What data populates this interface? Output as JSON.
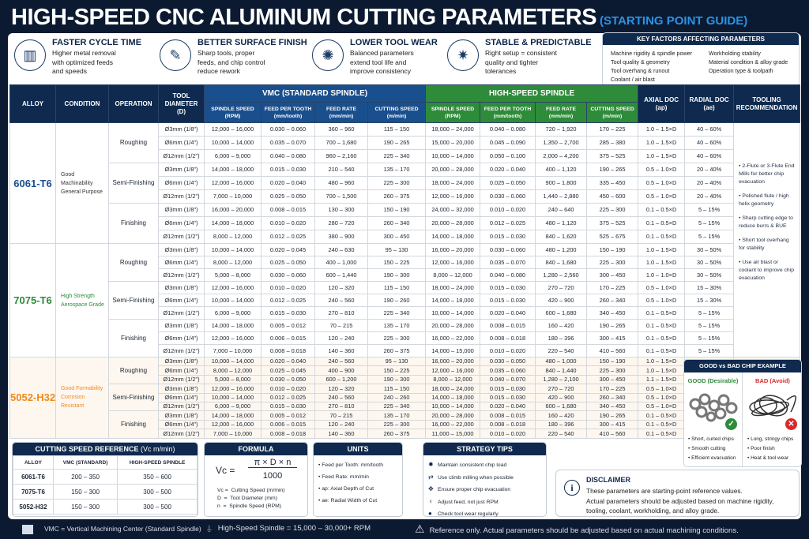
{
  "title": {
    "main": "HIGH-SPEED CNC ALUMINUM CUTTING PARAMETERS",
    "sub": "(STARTING POINT GUIDE)"
  },
  "features": [
    {
      "icon": "bar-chart-icon",
      "title": "FASTER CYCLE TIME",
      "lines": [
        "Higher metal removal",
        "with optimized feeds",
        "and speeds"
      ]
    },
    {
      "icon": "feather-icon",
      "title": "BETTER SURFACE FINISH",
      "lines": [
        "Sharp tools, proper",
        "feeds, and chip control",
        "reduce rework"
      ]
    },
    {
      "icon": "gear-shield-icon",
      "title": "LOWER TOOL WEAR",
      "lines": [
        "Balanced parameters",
        "extend tool life and",
        "improve consistency"
      ]
    },
    {
      "icon": "badge-gear-icon",
      "title": "STABLE & PREDICTABLE",
      "lines": [
        "Right setup = consistent",
        "quality and tighter",
        "tolerances"
      ]
    }
  ],
  "key_factors": {
    "title": "KEY FACTORS AFFECTING PARAMETERS",
    "left": [
      "Machine rigidity & spindle power",
      "Tool quality & geometry",
      "Tool overhang & runout",
      "Coolant / air blast"
    ],
    "right": [
      "Workholding stability",
      "Material condition & alloy grade",
      "Operation type & toolpath"
    ]
  },
  "table": {
    "headers": {
      "alloy": "ALLOY",
      "condition": "CONDITION",
      "operation": "OPERATION",
      "tool": [
        "TOOL",
        "DIAMETER",
        "(D)"
      ],
      "vmc": "VMC (STANDARD SPINDLE)",
      "hss": "HIGH-SPEED SPINDLE",
      "sub": [
        [
          "SPINDLE SPEED",
          "(RPM)"
        ],
        [
          "FEED PER TOOTH",
          "(mm/tooth)"
        ],
        [
          "FEED RATE",
          "(mm/min)"
        ],
        [
          "CUTTING SPEED",
          "(m/min)"
        ]
      ],
      "axial": [
        "AXIAL DOC",
        "(ap)"
      ],
      "radial": [
        "RADIAL DOC",
        "(ae)"
      ],
      "tooling": [
        "TOOLING",
        "RECOMMENDATION"
      ]
    },
    "tooling": [
      "• 2-Flute or 3-Flute End Mills for better chip evacuation",
      "• Polished flute / high helix geometry",
      "• Sharp cutting edge to reduce burrs & BUE",
      "• Short tool overhang for stability",
      "• Use air blast or coolant to improve chip evacuation"
    ],
    "alloys": [
      {
        "name": "6061-T6",
        "color": "#1a4f8e",
        "condition": [
          "Good",
          "Machinability",
          "General Purpose"
        ],
        "cond_color": "#333333",
        "ops": [
          {
            "name": "Roughing",
            "rows": [
              [
                "Ø3mm (1/8\")",
                "12,000 – 16,000",
                "0.030 – 0.060",
                "360 – 960",
                "115 – 150",
                "18,000 – 24,000",
                "0.040 – 0.080",
                "720 – 1,920",
                "170 – 225",
                "1.0 – 1.5×D",
                "40 – 60%"
              ],
              [
                "Ø6mm (1/4\")",
                "10,000 – 14,000",
                "0.035 – 0.070",
                "700 – 1,680",
                "190 – 265",
                "15,000 – 20,000",
                "0.045 – 0.090",
                "1,350 – 2,700",
                "285 – 380",
                "1.0 – 1.5×D",
                "40 – 60%"
              ],
              [
                "Ø12mm (1/2\")",
                "6,000 – 9,000",
                "0.040 – 0.080",
                "960 – 2,160",
                "225 – 340",
                "10,000 – 14,000",
                "0.050 – 0.100",
                "2,000 – 4,200",
                "375 – 525",
                "1.0 – 1.5×D",
                "40 – 60%"
              ]
            ]
          },
          {
            "name": "Semi-Finishing",
            "rows": [
              [
                "Ø3mm (1/8\")",
                "14,000 – 18,000",
                "0.015 – 0.030",
                "210 – 540",
                "135 – 170",
                "20,000 – 28,000",
                "0.020 – 0.040",
                "400 – 1,120",
                "190 – 265",
                "0.5 – 1.0×D",
                "20 – 40%"
              ],
              [
                "Ø6mm (1/4\")",
                "12,000 – 16,000",
                "0.020 – 0.040",
                "480 – 960",
                "225 – 300",
                "18,000 – 24,000",
                "0.025 – 0.050",
                "900 – 1,800",
                "335 – 450",
                "0.5 – 1.0×D",
                "20 – 40%"
              ],
              [
                "Ø12mm (1/2\")",
                "7,000 – 10,000",
                "0.025 – 0.050",
                "700 – 1,500",
                "260 – 375",
                "12,000 – 16,000",
                "0.030 – 0.060",
                "1,440 – 2,880",
                "450 – 600",
                "0.5 – 1.0×D",
                "20 – 40%"
              ]
            ]
          },
          {
            "name": "Finishing",
            "rows": [
              [
                "Ø3mm (1/8\")",
                "16,000 – 20,000",
                "0.008 – 0.015",
                "130 – 300",
                "150 – 190",
                "24,000 – 32,000",
                "0.010 – 0.020",
                "240 – 640",
                "225 – 300",
                "0.1 – 0.5×D",
                "5 – 15%"
              ],
              [
                "Ø6mm (1/4\")",
                "14,000 – 18,000",
                "0.010 – 0.020",
                "280 – 720",
                "260 – 340",
                "20,000 – 28,000",
                "0.012 – 0.025",
                "480 – 1,120",
                "375 – 525",
                "0.1 – 0.5×D",
                "5 – 15%"
              ],
              [
                "Ø12mm (1/2\")",
                "8,000 – 12,000",
                "0.012 – 0.025",
                "380 – 900",
                "300 – 450",
                "14,000 – 18,000",
                "0.015 – 0.030",
                "840 – 1,620",
                "525 – 675",
                "0.1 – 0.5×D",
                "5 – 15%"
              ]
            ]
          }
        ]
      },
      {
        "name": "7075-T6",
        "color": "#2e8b3a",
        "condition": [
          "High Strength",
          "Aerospace Grade"
        ],
        "cond_color": "#2e8b3a",
        "ops": [
          {
            "name": "Roughing",
            "rows": [
              [
                "Ø3mm (1/8\")",
                "10,000 – 14,000",
                "0.020 – 0.045",
                "240 – 630",
                "95 – 130",
                "16,000 – 20,000",
                "0.030 – 0.060",
                "480 – 1,200",
                "150 – 190",
                "1.0 – 1.5×D",
                "30 – 50%"
              ],
              [
                "Ø6mm (1/4\")",
                "8,000 – 12,000",
                "0.025 – 0.050",
                "400 – 1,000",
                "150 – 225",
                "12,000 – 16,000",
                "0.035 – 0.070",
                "840 – 1,680",
                "225 – 300",
                "1.0 – 1.5×D",
                "30 – 50%"
              ],
              [
                "Ø12mm (1/2\")",
                "5,000 – 8,000",
                "0.030 – 0.060",
                "600 – 1,440",
                "190 – 300",
                "8,000 – 12,000",
                "0.040 – 0.080",
                "1,280 – 2,560",
                "300 – 450",
                "1.0 – 1.0×D",
                "30 – 50%"
              ]
            ]
          },
          {
            "name": "Semi-Finishing",
            "rows": [
              [
                "Ø3mm (1/8\")",
                "12,000 – 16,000",
                "0.010 – 0.020",
                "120 – 320",
                "115 – 150",
                "18,000 – 24,000",
                "0.015 – 0.030",
                "270 – 720",
                "170 – 225",
                "0.5 – 1.0×D",
                "15 – 30%"
              ],
              [
                "Ø6mm (1/4\")",
                "10,000 – 14,000",
                "0.012 – 0.025",
                "240 – 560",
                "190 – 260",
                "14,000 – 18,000",
                "0.015 – 0.030",
                "420 – 900",
                "260 – 340",
                "0.5 – 1.0×D",
                "15 – 30%"
              ],
              [
                "Ø12mm (1/2\")",
                "6,000 – 9,000",
                "0.015 – 0.030",
                "270 – 810",
                "225 – 340",
                "10,000 – 14,000",
                "0.020 – 0.040",
                "600 – 1,680",
                "340 – 450",
                "0.1 – 0.5×D",
                "5 – 15%"
              ]
            ]
          },
          {
            "name": "Finishing",
            "rows": [
              [
                "Ø3mm (1/8\")",
                "14,000 – 18,000",
                "0.005 – 0.012",
                "70 – 215",
                "135 – 170",
                "20,000 – 28,000",
                "0.008 – 0.015",
                "160 – 420",
                "190 – 265",
                "0.1 – 0.5×D",
                "5 – 15%"
              ],
              [
                "Ø6mm (1/4\")",
                "12,000 – 16,000",
                "0.006 – 0.015",
                "120 – 240",
                "225 – 300",
                "16,000 – 22,000",
                "0.008 – 0.018",
                "180 – 396",
                "300 – 415",
                "0.1 – 0.5×D",
                "5 – 15%"
              ],
              [
                "Ø12mm (1/2\")",
                "7,000 – 10,000",
                "0.008 – 0.018",
                "140 – 360",
                "260 – 375",
                "14,000 – 15,000",
                "0.010 – 0.020",
                "220 – 540",
                "410 – 560",
                "0.1 – 0.5×D",
                "5 – 15%"
              ]
            ]
          }
        ]
      },
      {
        "name": "5052-H32",
        "color": "#f08a1c",
        "condition": [
          "Good Formability",
          "Corrosion Resistant"
        ],
        "cond_color": "#f08a1c",
        "ops": [
          {
            "name": "Roughing",
            "rows": [
              [
                "Ø3mm (1/8\")",
                "10,000 – 14,000",
                "0.020 – 0.040",
                "240 – 560",
                "95 – 130",
                "16,000 – 20,000",
                "0.030 – 0.050",
                "480 – 1,000",
                "150 – 190",
                "1.0 – 1.5×D",
                ""
              ],
              [
                "Ø6mm (1/4\")",
                "8,000 – 12,000",
                "0.025 – 0.045",
                "400 – 900",
                "150 – 225",
                "12,000 – 16,000",
                "0.035 – 0.060",
                "840 – 1,440",
                "225 – 300",
                "1.0 – 1.5×D",
                ""
              ],
              [
                "Ø12mm (1/2\")",
                "5,000 – 8,000",
                "0.030 – 0.050",
                "600 – 1,200",
                "190 – 300",
                "8,000 – 12,000",
                "0.040 – 0.070",
                "1,280 – 2,100",
                "300 – 450",
                "1.1 – 1.5×D",
                ""
              ]
            ]
          },
          {
            "name": "Semi-Finishing",
            "rows": [
              [
                "Ø3mm (1/8\")",
                "12,000 – 16,000",
                "0.010 – 0.020",
                "120 – 320",
                "115 – 150",
                "18,000 – 24,000",
                "0.015 – 0.030",
                "270 – 720",
                "170 – 225",
                "0.5 – 1.0×D",
                ""
              ],
              [
                "Ø6mm (1/4\")",
                "10,000 – 14,000",
                "0.012 – 0.025",
                "240 – 560",
                "240 – 260",
                "14,000 – 18,000",
                "0.015 – 0.030",
                "420 – 900",
                "260 – 340",
                "0.5 – 1.0×D",
                ""
              ],
              [
                "Ø12mm (1/2\")",
                "6,000 – 9,000",
                "0.015 – 0.030",
                "270 – 810",
                "225 – 340",
                "10,000 – 14,000",
                "0.020 – 0.040",
                "600 – 1,680",
                "340 – 450",
                "0.5 – 1.0×D",
                ""
              ]
            ]
          },
          {
            "name": "Finishing",
            "rows": [
              [
                "Ø3mm (1/8\")",
                "14,000 – 18,000",
                "0.005 – 0.012",
                "70 – 215",
                "135 – 170",
                "20,000 – 28,000",
                "0.008 – 0.015",
                "160 – 420",
                "190 – 265",
                "0.1 – 0.5×D",
                ""
              ],
              [
                "Ø6mm (1/4\")",
                "12,000 – 16,000",
                "0.006 – 0.015",
                "120 – 240",
                "225 – 300",
                "16,000 – 22,000",
                "0.008 – 0.018",
                "180 – 396",
                "300 – 415",
                "0.1 – 0.5×D",
                ""
              ],
              [
                "Ø12mm (1/2\")",
                "7,000 – 10,000",
                "0.008 – 0.018",
                "140 – 360",
                "260 – 375",
                "11,000 – 15,000",
                "0.010 – 0.020",
                "220 – 540",
                "410 – 560",
                "0.1 – 0.5×D",
                ""
              ]
            ]
          }
        ]
      }
    ]
  },
  "chip_example": {
    "title": "GOOD vs BAD CHIP EXAMPLE",
    "good": {
      "label": "GOOD (Desirable)",
      "color": "#2e8b3a",
      "points": [
        "• Short, curled chips",
        "• Smooth cutting",
        "• Efficient evacuation"
      ]
    },
    "bad": {
      "label": "BAD (Avoid)",
      "color": "#d9292b",
      "points": [
        "• Long, stringy chips",
        "• Poor finish",
        "• Heat & tool wear"
      ]
    }
  },
  "speed_ref": {
    "title": "CUTTING SPEED REFERENCE",
    "unit": "(Vc m/min)",
    "headers": [
      "ALLOY",
      "VMC (STANDARD)",
      "HIGH-SPEED SPINDLE"
    ],
    "rows": [
      [
        "6061-T6",
        "200 – 350",
        "350 – 600"
      ],
      [
        "7075-T6",
        "150 – 300",
        "300 – 500"
      ],
      [
        "5052-H32",
        "150 – 300",
        "300 – 500"
      ]
    ]
  },
  "formula": {
    "title": "FORMULA",
    "lhs": "Vc =",
    "numerator": "π × D × n",
    "denominator": "1000",
    "legend": [
      "Vc =  Cutting Speed (m/min)",
      "D  =  Tool Diameter (mm)",
      "n  =  Spindle Speed (RPM)"
    ]
  },
  "units": {
    "title": "UNITS",
    "items": [
      "• Feed per Tooth: mm/tooth",
      "• Feed Rate: mm/min",
      "• ap: Axial Depth of Cut",
      "• ae: Radial Width of Cut"
    ]
  },
  "tips": {
    "title": "STRATEGY TIPS",
    "items": [
      {
        "icon": "chip-load-icon",
        "text": "Maintain consistent chip load"
      },
      {
        "icon": "climb-arrows-icon",
        "text": "Use climb milling when possible"
      },
      {
        "icon": "evacuation-arrows-icon",
        "text": "Ensure proper chip evacuation"
      },
      {
        "icon": "pin-icon",
        "text": "Adjust feed, not just RPM"
      },
      {
        "icon": "tool-check-icon",
        "text": "Check tool wear regularly"
      }
    ]
  },
  "disclaimer": {
    "title": "DISCLAIMER",
    "lines": [
      "These parameters are starting-point reference values.",
      "Actual parameters should be adjusted based on machine rigidity,",
      "tooling, coolant, workholding, and alloy grade."
    ]
  },
  "footer": {
    "vmc": "VMC = Vertical Machining Center (Standard Spindle)",
    "hss": "High-Speed Spindle = 15,000 – 30,000+ RPM",
    "note": "Reference only. Actual parameters should be adjusted based on actual machining conditions."
  }
}
